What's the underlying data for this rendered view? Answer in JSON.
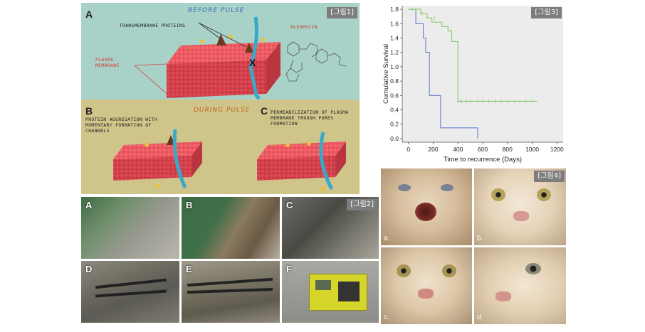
{
  "fig1": {
    "tag": "[그림1]",
    "letter_a": "A",
    "letter_b": "B",
    "letter_c": "C",
    "before_pulse": "BEFORE PULSE",
    "during_pulse": "DURING PULSE",
    "transmembrane": "TRANSMEMBRANE PROTEINS",
    "bleomycin": "BLEOMYCIN",
    "plasma_membrane": "PLASMA MEMBRANE",
    "note_b": "PROTEIN AGGREGATION WITH MOMENTARY FORMATION OF CHANNELS",
    "note_c": "PERMEABILIZATION OF PLASMA MEMBRANE TROUGH PORES FORMATION",
    "block_mark": "X"
  },
  "fig2": {
    "tag": "[그림2]",
    "labels": [
      "A",
      "B",
      "C",
      "D",
      "E",
      "F"
    ]
  },
  "fig3": {
    "tag": "[그림3]",
    "chart_data": {
      "type": "line",
      "xlabel": "Time to recurrence (Days)",
      "ylabel": "Cumulative Survival",
      "xlim": [
        -50,
        1250
      ],
      "ylim": [
        -0.05,
        1.85
      ],
      "x_ticks": [
        0,
        200,
        400,
        600,
        800,
        1000,
        1200
      ],
      "y_ticks": [
        0.0,
        0.2,
        0.4,
        0.6,
        0.8,
        1.0,
        1.2,
        1.4,
        1.6,
        1.8
      ],
      "y_tick_labels": [
        "0.0",
        "0.2",
        "0.4",
        "0.6",
        "0.8",
        "1.0",
        "1.2",
        "1.4",
        "1.6",
        "1.8"
      ],
      "grid": false,
      "background": "#eeeeee",
      "series": [
        {
          "color": "#6a7fd0",
          "step_x": [
            0,
            60,
            60,
            120,
            120,
            140,
            140,
            170,
            170,
            260,
            260,
            560
          ],
          "step_y": [
            1.8,
            1.8,
            1.6,
            1.6,
            1.4,
            1.4,
            1.2,
            1.2,
            0.6,
            0.6,
            0.15,
            0.15
          ],
          "end_x": 560,
          "end_y": 0.0
        },
        {
          "color": "#8ac96a",
          "step_x": [
            0,
            100,
            100,
            150,
            150,
            190,
            190,
            270,
            270,
            320,
            320,
            350,
            350,
            400,
            400,
            1040
          ],
          "step_y": [
            1.8,
            1.8,
            1.74,
            1.74,
            1.68,
            1.68,
            1.62,
            1.62,
            1.56,
            1.56,
            1.5,
            1.5,
            1.35,
            1.35,
            0.52,
            0.52
          ],
          "censor_x": [
            30,
            60,
            110,
            210,
            400,
            430,
            470,
            500,
            560,
            600,
            650,
            700,
            750,
            800,
            860,
            900,
            950,
            1000
          ],
          "censor_y": [
            1.8,
            1.8,
            1.74,
            1.68,
            0.52,
            0.52,
            0.52,
            0.52,
            0.52,
            0.52,
            0.52,
            0.52,
            0.52,
            0.52,
            0.52,
            0.52,
            0.52,
            0.52
          ]
        }
      ]
    }
  },
  "fig4": {
    "tag": "[그림4]",
    "labels": [
      "a.",
      "b.",
      "c.",
      "d."
    ]
  }
}
